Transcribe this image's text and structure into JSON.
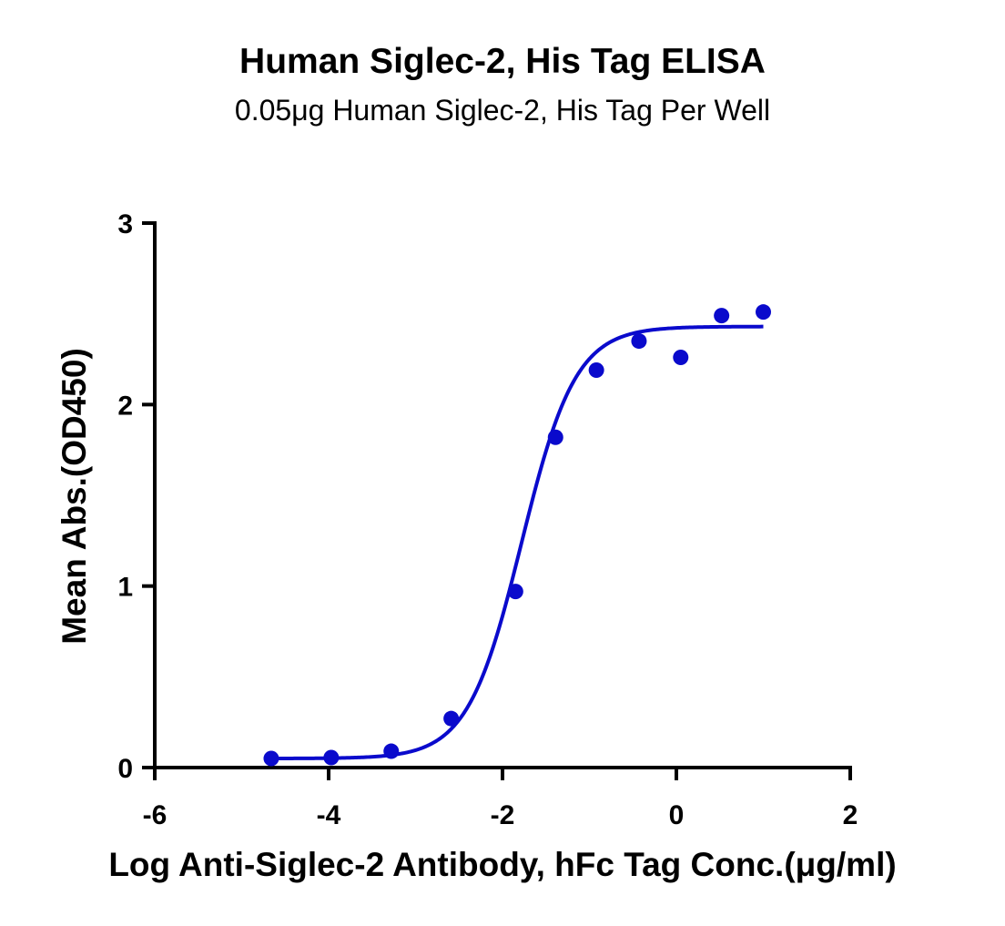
{
  "chart_data": {
    "type": "scatter",
    "title": "Human Siglec-2, His Tag ELISA",
    "subtitle": "0.05μg  Human Siglec-2, His Tag Per Well",
    "xlabel": "Log Anti-Siglec-2 Antibody, hFc Tag Conc.(μg/ml)",
    "ylabel": "Mean Abs.(OD450)",
    "xlim": [
      -6,
      2
    ],
    "ylim": [
      0,
      3
    ],
    "x_ticks": [
      -6,
      -4,
      -2,
      0,
      2
    ],
    "x_tick_labels": [
      "-6",
      "-4",
      "-2",
      "0",
      "2"
    ],
    "y_ticks": [
      0,
      1,
      2,
      3
    ],
    "y_tick_labels": [
      "0",
      "1",
      "2",
      "3"
    ],
    "grid": false,
    "color": "#0a0acc",
    "series": [
      {
        "x": [
          -4.66,
          -3.97,
          -3.28,
          -2.59,
          -1.85,
          -1.39,
          -0.92,
          -0.43,
          0.05,
          0.52,
          1.0
        ],
        "y": [
          0.05,
          0.055,
          0.09,
          0.27,
          0.97,
          1.82,
          2.19,
          2.35,
          2.26,
          2.49,
          2.51
        ]
      }
    ],
    "fit_curve": {
      "model": "4PL",
      "bottom": 0.05,
      "top": 2.43,
      "log_ec50": -1.78,
      "hill_slope": 1.4,
      "x_range": [
        -4.66,
        1.0
      ]
    }
  }
}
